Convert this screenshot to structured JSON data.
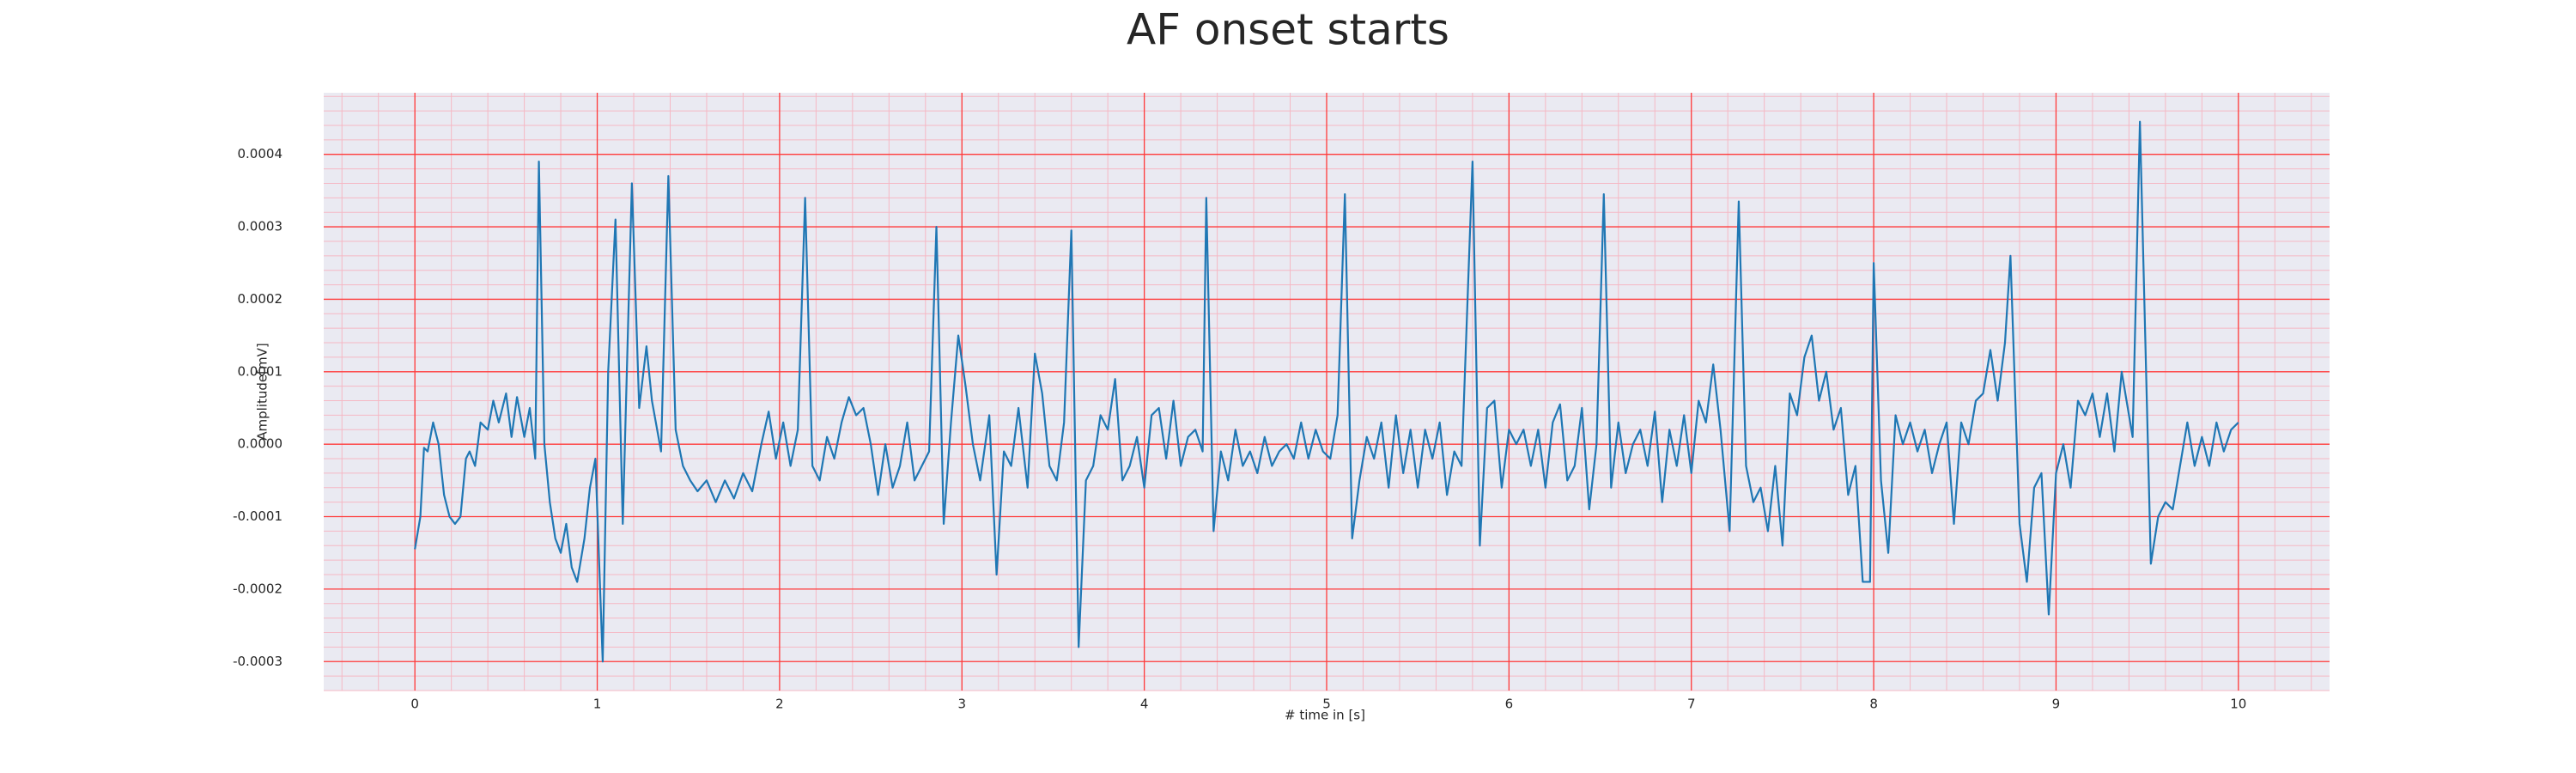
{
  "chart_data": {
    "type": "line",
    "title": "AF onset starts",
    "xlabel": "# time in [s]",
    "ylabel": "Amplitude[mV]",
    "xlim": [
      -0.5,
      10.5
    ],
    "ylim": [
      -0.00034,
      0.000485
    ],
    "xticks": [
      0,
      1,
      2,
      3,
      4,
      5,
      6,
      7,
      8,
      9,
      10
    ],
    "yticks": [
      -0.0003,
      -0.0002,
      -0.0001,
      {
        "value": 0,
        "label": "0.0000"
      },
      0.0001,
      0.0002,
      0.0003,
      0.0004
    ],
    "grid": true,
    "minor_grid": true,
    "xminor_step": 0.2,
    "yminor_step": 2e-05,
    "background": "#eaeaf2",
    "grid_color": "#ff3b3b",
    "minor_grid_color": "#f5b8c4",
    "series": [
      {
        "color": "#1f77b4",
        "x": [
          0,
          0.03,
          0.05,
          0.07,
          0.1,
          0.13,
          0.16,
          0.19,
          0.22,
          0.25,
          0.28,
          0.3,
          0.33,
          0.36,
          0.4,
          0.43,
          0.46,
          0.5,
          0.53,
          0.56,
          0.6,
          0.63,
          0.66,
          0.68,
          0.71,
          0.74,
          0.77,
          0.8,
          0.83,
          0.86,
          0.89,
          0.93,
          0.96,
          0.99,
          1.03,
          1.06,
          1.1,
          1.14,
          1.19,
          1.23,
          1.27,
          1.3,
          1.35,
          1.39,
          1.43,
          1.47,
          1.51,
          1.55,
          1.6,
          1.65,
          1.7,
          1.75,
          1.8,
          1.85,
          1.9,
          1.94,
          1.98,
          2.02,
          2.06,
          2.1,
          2.14,
          2.18,
          2.22,
          2.26,
          2.3,
          2.34,
          2.38,
          2.42,
          2.46,
          2.5,
          2.54,
          2.58,
          2.62,
          2.66,
          2.7,
          2.74,
          2.78,
          2.82,
          2.86,
          2.9,
          2.94,
          2.98,
          3.02,
          3.06,
          3.1,
          3.15,
          3.19,
          3.23,
          3.27,
          3.31,
          3.36,
          3.4,
          3.44,
          3.48,
          3.52,
          3.56,
          3.6,
          3.64,
          3.68,
          3.72,
          3.76,
          3.8,
          3.84,
          3.88,
          3.92,
          3.96,
          4,
          4.04,
          4.08,
          4.12,
          4.16,
          4.2,
          4.24,
          4.28,
          4.32,
          4.34,
          4.38,
          4.42,
          4.46,
          4.5,
          4.54,
          4.58,
          4.62,
          4.66,
          4.7,
          4.74,
          4.78,
          4.82,
          4.86,
          4.9,
          4.94,
          4.98,
          5.02,
          5.06,
          5.1,
          5.14,
          5.18,
          5.22,
          5.26,
          5.3,
          5.34,
          5.38,
          5.42,
          5.46,
          5.5,
          5.54,
          5.58,
          5.62,
          5.66,
          5.7,
          5.74,
          5.8,
          5.84,
          5.88,
          5.92,
          5.96,
          6,
          6.04,
          6.08,
          6.12,
          6.16,
          6.2,
          6.24,
          6.28,
          6.32,
          6.36,
          6.4,
          6.44,
          6.48,
          6.52,
          6.56,
          6.6,
          6.64,
          6.68,
          6.72,
          6.76,
          6.8,
          6.84,
          6.88,
          6.92,
          6.96,
          7,
          7.04,
          7.08,
          7.12,
          7.16,
          7.21,
          7.26,
          7.3,
          7.34,
          7.38,
          7.42,
          7.46,
          7.5,
          7.54,
          7.58,
          7.62,
          7.66,
          7.7,
          7.74,
          7.78,
          7.82,
          7.86,
          7.9,
          7.94,
          7.98,
          8,
          8.04,
          8.08,
          8.12,
          8.16,
          8.2,
          8.24,
          8.28,
          8.32,
          8.36,
          8.4,
          8.44,
          8.48,
          8.52,
          8.56,
          8.6,
          8.64,
          8.68,
          8.72,
          8.75,
          8.8,
          8.84,
          8.88,
          8.92,
          8.96,
          9,
          9.04,
          9.08,
          9.12,
          9.16,
          9.2,
          9.24,
          9.28,
          9.32,
          9.36,
          9.42,
          9.46,
          9.52,
          9.56,
          9.6,
          9.64,
          9.68,
          9.72,
          9.76,
          9.8,
          9.84,
          9.88,
          9.92,
          9.96,
          10
        ],
        "values": [
          -0.000145,
          -0.0001,
          -5e-06,
          -1e-05,
          3e-05,
          0,
          -7e-05,
          -0.0001,
          -0.00011,
          -0.0001,
          -2e-05,
          -1e-05,
          -3e-05,
          3e-05,
          2e-05,
          6e-05,
          3e-05,
          7e-05,
          1e-05,
          6.5e-05,
          1e-05,
          5e-05,
          -2e-05,
          0.00039,
          0,
          -8e-05,
          -0.00013,
          -0.00015,
          -0.00011,
          -0.00017,
          -0.00019,
          -0.00013,
          -6e-05,
          -2e-05,
          -0.0003,
          0.0001,
          0.00031,
          -0.00011,
          0.00036,
          5e-05,
          0.000135,
          6e-05,
          -1e-05,
          0.00037,
          2e-05,
          -3e-05,
          -5e-05,
          -6.5e-05,
          -5e-05,
          -8e-05,
          -5e-05,
          -7.5e-05,
          -4e-05,
          -6.5e-05,
          0,
          4.5e-05,
          -2e-05,
          3e-05,
          -3e-05,
          2e-05,
          0.00034,
          -3e-05,
          -5e-05,
          1e-05,
          -2e-05,
          3e-05,
          6.5e-05,
          4e-05,
          5e-05,
          0,
          -7e-05,
          0,
          -6e-05,
          -3e-05,
          3e-05,
          -5e-05,
          -3e-05,
          -1e-05,
          0.0003,
          -0.00011,
          3e-05,
          0.00015,
          8e-05,
          0,
          -5e-05,
          4e-05,
          -0.00018,
          -1e-05,
          -3e-05,
          5e-05,
          -6e-05,
          0.000125,
          7e-05,
          -3e-05,
          -5e-05,
          3e-05,
          0.000295,
          -0.00028,
          -5e-05,
          -3e-05,
          4e-05,
          2e-05,
          9e-05,
          -5e-05,
          -3e-05,
          1e-05,
          -6e-05,
          4e-05,
          5e-05,
          -2e-05,
          6e-05,
          -3e-05,
          1e-05,
          2e-05,
          -1e-05,
          0.00034,
          -0.00012,
          -1e-05,
          -5e-05,
          2e-05,
          -3e-05,
          -1e-05,
          -4e-05,
          1e-05,
          -3e-05,
          -1e-05,
          0,
          -2e-05,
          3e-05,
          -2e-05,
          2e-05,
          -1e-05,
          -2e-05,
          4e-05,
          0.000345,
          -0.00013,
          -5e-05,
          1e-05,
          -2e-05,
          3e-05,
          -6e-05,
          4e-05,
          -4e-05,
          2e-05,
          -6e-05,
          2e-05,
          -2e-05,
          3e-05,
          -7e-05,
          -1e-05,
          -3e-05,
          0.00039,
          -0.00014,
          5e-05,
          6e-05,
          -6e-05,
          2e-05,
          0,
          2e-05,
          -3e-05,
          2e-05,
          -6e-05,
          3e-05,
          5.5e-05,
          -5e-05,
          -3e-05,
          5e-05,
          -9e-05,
          0,
          0.000345,
          -6e-05,
          3e-05,
          -4e-05,
          0,
          2e-05,
          -3e-05,
          4.5e-05,
          -8e-05,
          2e-05,
          -3e-05,
          4e-05,
          -4e-05,
          6e-05,
          3e-05,
          0.00011,
          2e-05,
          -0.00012,
          0.000335,
          -3e-05,
          -8e-05,
          -6e-05,
          -0.00012,
          -3e-05,
          -0.00014,
          7e-05,
          4e-05,
          0.00012,
          0.00015,
          6e-05,
          0.0001,
          2e-05,
          5e-05,
          -7e-05,
          -3e-05,
          -0.00019,
          -0.00019,
          0.00025,
          -5e-05,
          -0.00015,
          4e-05,
          0,
          3e-05,
          -1e-05,
          2e-05,
          -4e-05,
          0,
          3e-05,
          -0.00011,
          3e-05,
          0,
          6e-05,
          7e-05,
          0.00013,
          6e-05,
          0.00014,
          0.00026,
          -0.00011,
          -0.00019,
          -6e-05,
          -4e-05,
          -0.000235,
          -4e-05,
          0,
          -6e-05,
          6e-05,
          4e-05,
          7e-05,
          1e-05,
          7e-05,
          -1e-05,
          0.0001,
          1e-05,
          0.000445,
          -0.000165,
          -0.0001,
          -8e-05,
          -9e-05,
          -3e-05,
          3e-05,
          -3e-05,
          1e-05,
          -3e-05,
          3e-05,
          -1e-05,
          2e-05,
          3e-05
        ]
      }
    ]
  }
}
